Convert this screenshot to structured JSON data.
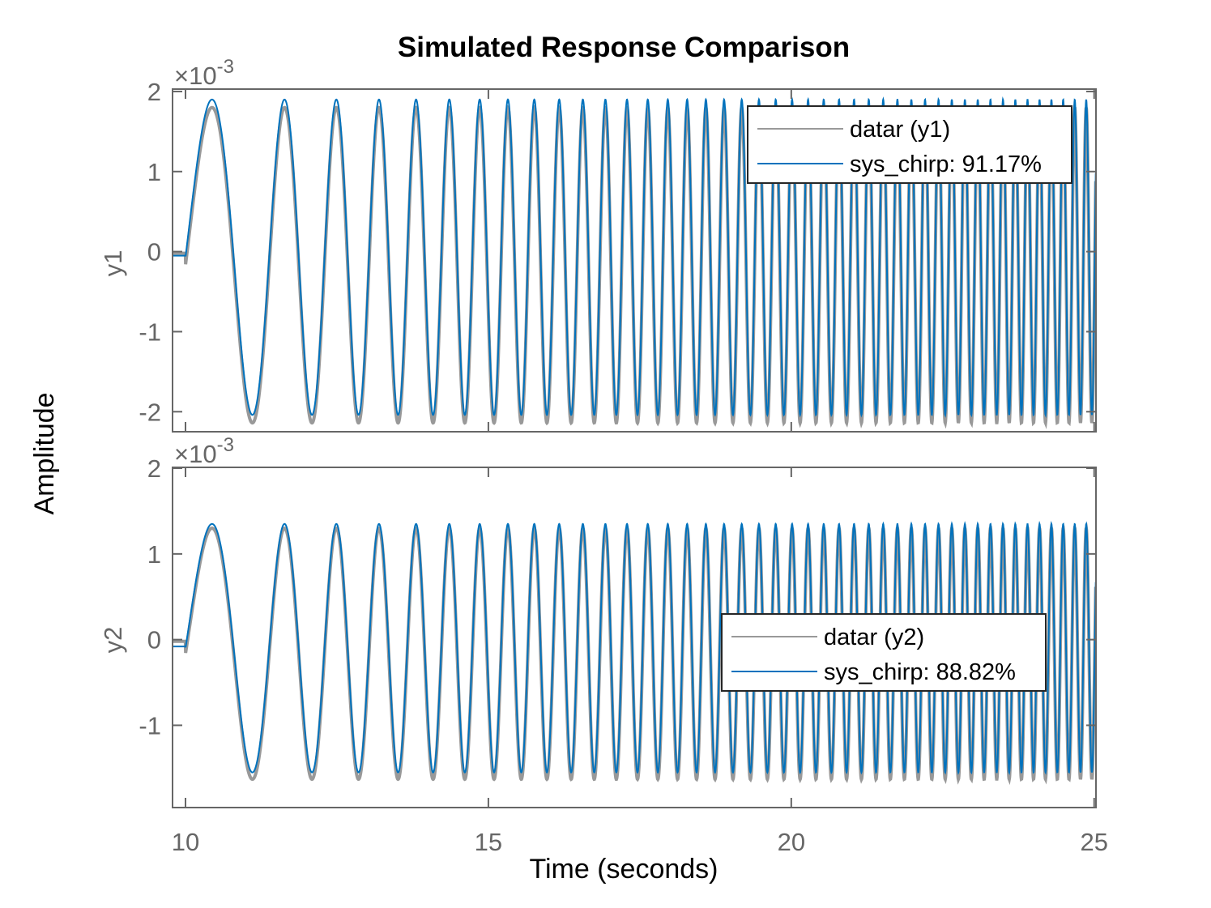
{
  "chart_data": {
    "type": "line",
    "title": "Simulated Response Comparison",
    "xlabel": "Time (seconds)",
    "ylabel": "Amplitude",
    "xlim": [
      9.786,
      25.03
    ],
    "xticks": [
      10,
      15,
      20,
      25
    ],
    "xtick_labels": [
      "10",
      "15",
      "20",
      "25"
    ],
    "grid": false,
    "colors": {
      "data": "#999999",
      "model": "#0072BD",
      "axes": "#666666"
    },
    "panels": [
      {
        "ylabel": "y1",
        "exponent_label": "×10",
        "exponent": "-3",
        "ylim": [
          -2.25,
          2.03
        ],
        "yticks": [
          -2,
          -1,
          0,
          1,
          2
        ],
        "ytick_labels": [
          "-2",
          "-1",
          "0",
          "1",
          "2"
        ],
        "legend": {
          "placement": "top-right",
          "entries": [
            "datar (y1)",
            "sys_chirp: 91.17%"
          ]
        },
        "signal_model": "y = offset + amplitude*sin(2*pi*(f0*(t-10) + k/2*(t-10)^2)) for t>=10, pre_value for t<10",
        "series": [
          {
            "name": "datar (y1)",
            "color": "#999999",
            "offset": -0.17,
            "amplitude": 1.97,
            "pre_value": -0.02,
            "f0": 0.5,
            "k": 0.324
          },
          {
            "name": "sys_chirp: 91.17%",
            "color": "#0072BD",
            "offset": -0.07,
            "amplitude": 1.97,
            "pre_value": -0.05,
            "f0": 0.5,
            "k": 0.324
          }
        ]
      },
      {
        "ylabel": "y2",
        "exponent_label": "×10",
        "exponent": "-3",
        "ylim": [
          -1.96,
          2.01
        ],
        "yticks": [
          -1,
          0,
          1,
          2
        ],
        "ytick_labels": [
          "-1",
          "0",
          "1",
          "2"
        ],
        "legend": {
          "placement": "center-right",
          "entries": [
            "datar (y2)",
            "sys_chirp: 88.82%"
          ]
        },
        "signal_model": "y = offset + amplitude*sin(2*pi*(f0*(t-10) + k/2*(t-10)^2)) for t>=10, pre_value for t<10",
        "series": [
          {
            "name": "datar (y2)",
            "color": "#999999",
            "offset": -0.165,
            "amplitude": 1.465,
            "pre_value": -0.02,
            "f0": 0.5,
            "k": 0.324
          },
          {
            "name": "sys_chirp: 88.82%",
            "color": "#0072BD",
            "offset": -0.1,
            "amplitude": 1.45,
            "pre_value": -0.08,
            "f0": 0.5,
            "k": 0.324
          }
        ]
      }
    ]
  }
}
